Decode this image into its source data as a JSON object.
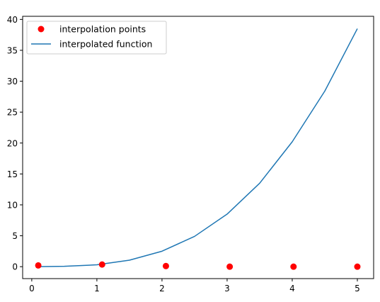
{
  "chart_data": {
    "type": "scatter",
    "title": "",
    "xlabel": "",
    "ylabel": "",
    "xlim": [
      -0.14,
      5.25
    ],
    "ylim": [
      -1.93,
      40.5
    ],
    "xticks": [
      0,
      1,
      2,
      3,
      4,
      5
    ],
    "yticks": [
      0,
      5,
      10,
      15,
      20,
      25,
      30,
      35,
      40
    ],
    "grid": false,
    "legend_position": "top-left",
    "series": [
      {
        "name": "interpolation points",
        "kind": "scatter",
        "color": "#ff0000",
        "x": [
          0.1,
          1.08,
          2.06,
          3.04,
          4.02,
          5.0
        ],
        "y": [
          0.2,
          0.35,
          0.1,
          0.0,
          0.0,
          0.0
        ]
      },
      {
        "name": "interpolated function",
        "kind": "line",
        "color": "#1f77b4",
        "x": [
          0.1,
          0.5,
          1.0,
          1.5,
          2.0,
          2.5,
          3.0,
          3.5,
          4.0,
          4.5,
          5.0
        ],
        "y": [
          0.0,
          0.06,
          0.3,
          1.05,
          2.5,
          4.9,
          8.5,
          13.5,
          20.2,
          28.4,
          38.5
        ]
      }
    ]
  }
}
